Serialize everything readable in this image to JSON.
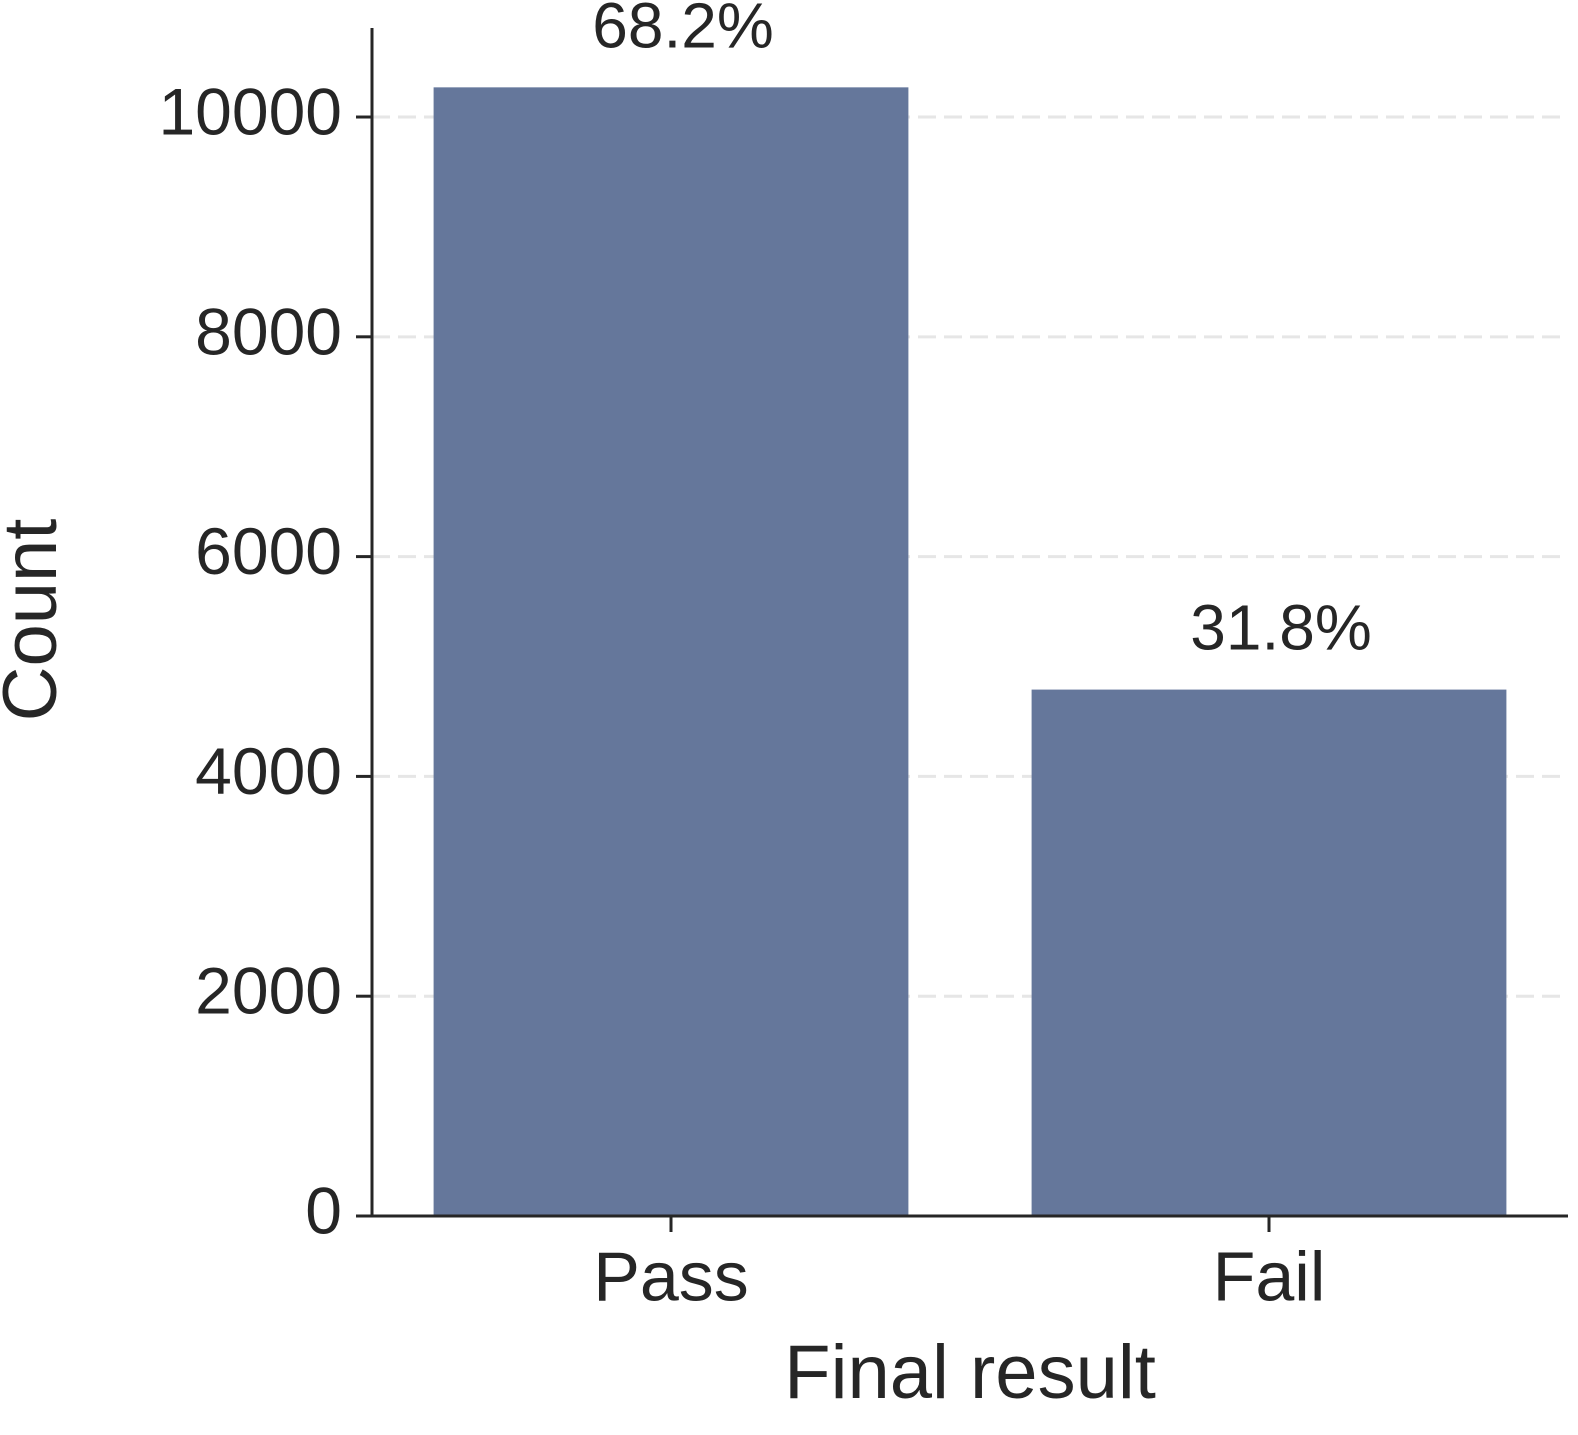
{
  "chart_data": {
    "type": "bar",
    "x_label": "Final result",
    "y_label": "Count",
    "categories": [
      "Pass",
      "Fail"
    ],
    "values": [
      10270,
      4790
    ],
    "data_labels": [
      {
        "value": 68.2,
        "label": "68.2%"
      },
      {
        "value": 31.8,
        "label": "31.8%"
      }
    ],
    "color": "#65779b",
    "ylim": [
      0,
      10810
    ],
    "yticks": [
      0,
      2000,
      4000,
      6000,
      8000,
      10000
    ],
    "grid": true
  }
}
